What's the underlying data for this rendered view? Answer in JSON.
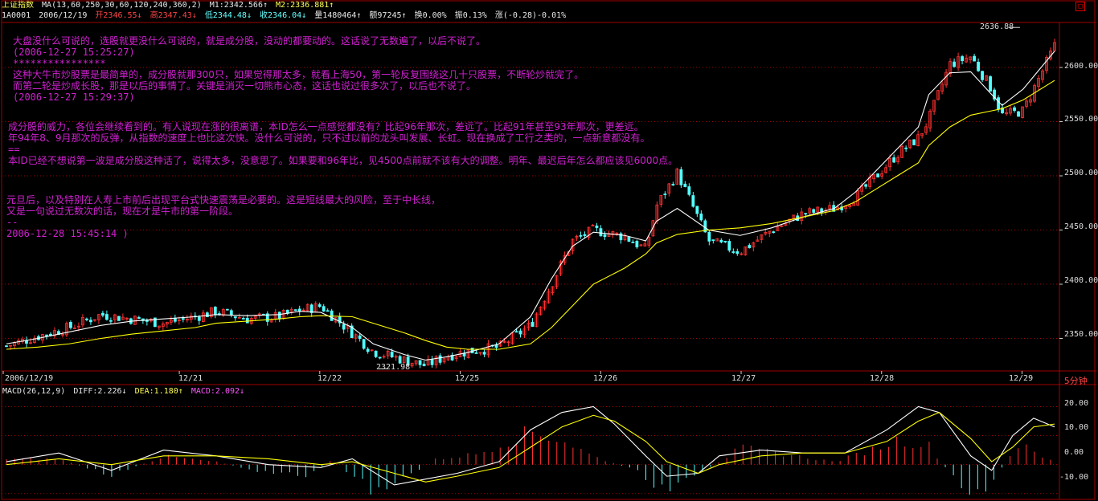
{
  "header": {
    "index_name": "上证指数",
    "ma_params": "MA(13,60,250,30,60,120,240,360,2)",
    "m1": "M1:2342.566↑",
    "m2": "M2:2336.881↑",
    "code": "1A0001",
    "date": "2006/12/19",
    "open": "开2346.55↓",
    "high": "高2347.43↓",
    "low": "低2344.48↓",
    "close": "收2346.04↓",
    "volume": "量1480464↑",
    "amount": "额97245↑",
    "turnover": "换0.00%",
    "amplitude": "振0.13%",
    "change": "涨(-0.28)-0.01%"
  },
  "toggle_icon": "close-icon",
  "annotations": [
    "大盘没什么可说的，选股就更没什么可说的，就是成分股，没动的都要动的。这话说了无数遍了，以后不说了。",
    "(2006-12-27 15:25:27)",
    "****************",
    "这种大牛市炒股票是最简单的，成分股就那300只，如果觉得那太多，就看上海50，第一轮反复围绕这几十只股票，不断轮炒就完了。",
    "而第二轮是炒成长股，那是以后的事情了。关键是消灭一切熊市心态，这话也说过很多次了，以后也不说了。",
    "(2006-12-27 15:29:37)",
    "成分股的威力，各位会继续看到的。有人说现在涨的很离谱，本ID怎么一点感觉都没有？比起96年那次，差远了。比起91年甚至93年那次，更差远。",
    "年94年8、9月那次的反弹，从指数的速度上也比这次快。没什么可说的，只不过以前的龙头叫发展、长虹。现在换成了工行之类的，一点新意都没有。",
    "==",
    "本ID已经不想说第一波是成分股这种话了，说得太多，没意思了。如果要和96年比，见4500点前就不该有大的调整。明年、最迟后年怎么都应该见6000点。",
    "元旦后，以及特别在人寿上市前后出现平台式快速震荡是必要的。这是短线最大的风险，至于中长线，",
    "又是一句说过无数次的话，现在才是牛市的第一阶段。",
    "--",
    "2006-12-28 15:45:14 )"
  ],
  "macd_header": {
    "title": "MACD(26,12,9)",
    "diff": "DIFF:2.226↓",
    "dea": "DEA:1.180↑",
    "macd": "MACD:2.092↓"
  },
  "period_label": "5分钟",
  "colors": {
    "background": "#000000",
    "up": "#ff3030",
    "down": "#54ffff",
    "ma1": "#ffffff",
    "ma2": "#ffff00",
    "grid": "#a00000",
    "annotation": "#d020d0"
  },
  "chart_data": [
    {
      "type": "candlestick",
      "title": "上证指数",
      "period": "5分钟",
      "x_labels": [
        "2006/12/19",
        "12/21",
        "12/22",
        "12/25",
        "12/26",
        "12/27",
        "12/28",
        "12/29"
      ],
      "y_ticks": [
        "2600.00",
        "2550.00",
        "2500.00",
        "2450.00",
        "2400.00",
        "2350.00"
      ],
      "ylim": [
        2320,
        2640
      ],
      "max_label": "2636.88",
      "min_label": "2321.98",
      "close_path": {
        "x": [
          0,
          0.03,
          0.06,
          0.09,
          0.12,
          0.15,
          0.18,
          0.2,
          0.23,
          0.26,
          0.28,
          0.3,
          0.33,
          0.35,
          0.38,
          0.4,
          0.42,
          0.44,
          0.47,
          0.5,
          0.52,
          0.54,
          0.56,
          0.59,
          0.61,
          0.62,
          0.64,
          0.67,
          0.7,
          0.73,
          0.76,
          0.79,
          0.81,
          0.83,
          0.85,
          0.87,
          0.88,
          0.9,
          0.92,
          0.94,
          0.95,
          0.97,
          1.0
        ],
        "y": [
          2343,
          2352,
          2360,
          2372,
          2368,
          2364,
          2370,
          2375,
          2368,
          2370,
          2376,
          2380,
          2355,
          2338,
          2330,
          2325,
          2334,
          2338,
          2342,
          2362,
          2400,
          2440,
          2450,
          2444,
          2432,
          2472,
          2503,
          2440,
          2430,
          2450,
          2465,
          2470,
          2480,
          2500,
          2520,
          2535,
          2552,
          2603,
          2610,
          2580,
          2556,
          2560,
          2620
        ]
      },
      "series": [
        {
          "name": "M1",
          "values": [
            2345,
            2350,
            2356,
            2362,
            2366,
            2368,
            2370,
            2372,
            2371,
            2372,
            2375,
            2374,
            2360,
            2345,
            2335,
            2330,
            2333,
            2337,
            2345,
            2370,
            2405,
            2435,
            2448,
            2445,
            2440,
            2458,
            2470,
            2450,
            2445,
            2452,
            2462,
            2470,
            2485,
            2505,
            2525,
            2545,
            2575,
            2595,
            2596,
            2575,
            2565,
            2580,
            2615
          ]
        },
        {
          "name": "M2",
          "values": [
            2340,
            2342,
            2345,
            2350,
            2354,
            2357,
            2360,
            2364,
            2366,
            2368,
            2370,
            2371,
            2370,
            2364,
            2355,
            2348,
            2342,
            2340,
            2340,
            2345,
            2360,
            2380,
            2400,
            2415,
            2428,
            2438,
            2446,
            2450,
            2452,
            2456,
            2462,
            2468,
            2476,
            2488,
            2500,
            2512,
            2528,
            2545,
            2556,
            2560,
            2562,
            2570,
            2588
          ]
        }
      ]
    },
    {
      "type": "bar",
      "title": "MACD(26,12,9)",
      "y_ticks": [
        "20.00",
        "10.00",
        "0.00",
        "-10.00"
      ],
      "ylim": [
        -12,
        24
      ],
      "series": [
        {
          "name": "DIFF",
          "x": [
            0,
            0.05,
            0.1,
            0.15,
            0.2,
            0.25,
            0.3,
            0.33,
            0.37,
            0.4,
            0.43,
            0.47,
            0.5,
            0.53,
            0.56,
            0.58,
            0.61,
            0.63,
            0.66,
            0.68,
            0.72,
            0.76,
            0.8,
            0.84,
            0.87,
            0.89,
            0.92,
            0.94,
            0.96,
            0.98,
            1.0
          ],
          "values": [
            1,
            4,
            -2,
            5,
            3,
            0,
            -1,
            2,
            -7,
            -5,
            -3,
            1,
            12,
            18,
            20,
            14,
            3,
            -4,
            -3,
            3,
            5,
            4,
            4,
            12,
            20,
            18,
            3,
            -2,
            10,
            16,
            13
          ]
        },
        {
          "name": "DEA",
          "x": [
            0,
            0.05,
            0.1,
            0.15,
            0.2,
            0.25,
            0.3,
            0.33,
            0.37,
            0.4,
            0.43,
            0.47,
            0.5,
            0.53,
            0.56,
            0.58,
            0.61,
            0.63,
            0.66,
            0.68,
            0.72,
            0.76,
            0.8,
            0.84,
            0.87,
            0.89,
            0.92,
            0.94,
            0.96,
            0.98,
            1.0
          ],
          "values": [
            0,
            2,
            0,
            3,
            3,
            2,
            0,
            1,
            -3,
            -6,
            -4,
            -1,
            6,
            13,
            17,
            15,
            8,
            1,
            -3,
            0,
            3,
            4,
            4,
            8,
            15,
            18,
            9,
            1,
            6,
            13,
            14
          ]
        },
        {
          "name": "MACD",
          "x": [
            0.0,
            0.05,
            0.1,
            0.15,
            0.2,
            0.25,
            0.29,
            0.31,
            0.35,
            0.38,
            0.41,
            0.45,
            0.5,
            0.53,
            0.56,
            0.6,
            0.63,
            0.66,
            0.7,
            0.74,
            0.79,
            0.83,
            0.85,
            0.88,
            0.9,
            0.92,
            0.94,
            0.97,
            0.99
          ],
          "values": [
            2,
            2,
            -4,
            3,
            1,
            -3,
            -4,
            2,
            -10,
            -5,
            2,
            4,
            12,
            9,
            3,
            -2,
            -10,
            -4,
            6,
            4,
            1,
            6,
            9,
            7,
            -3,
            -13,
            -6,
            9,
            2
          ]
        }
      ]
    }
  ]
}
